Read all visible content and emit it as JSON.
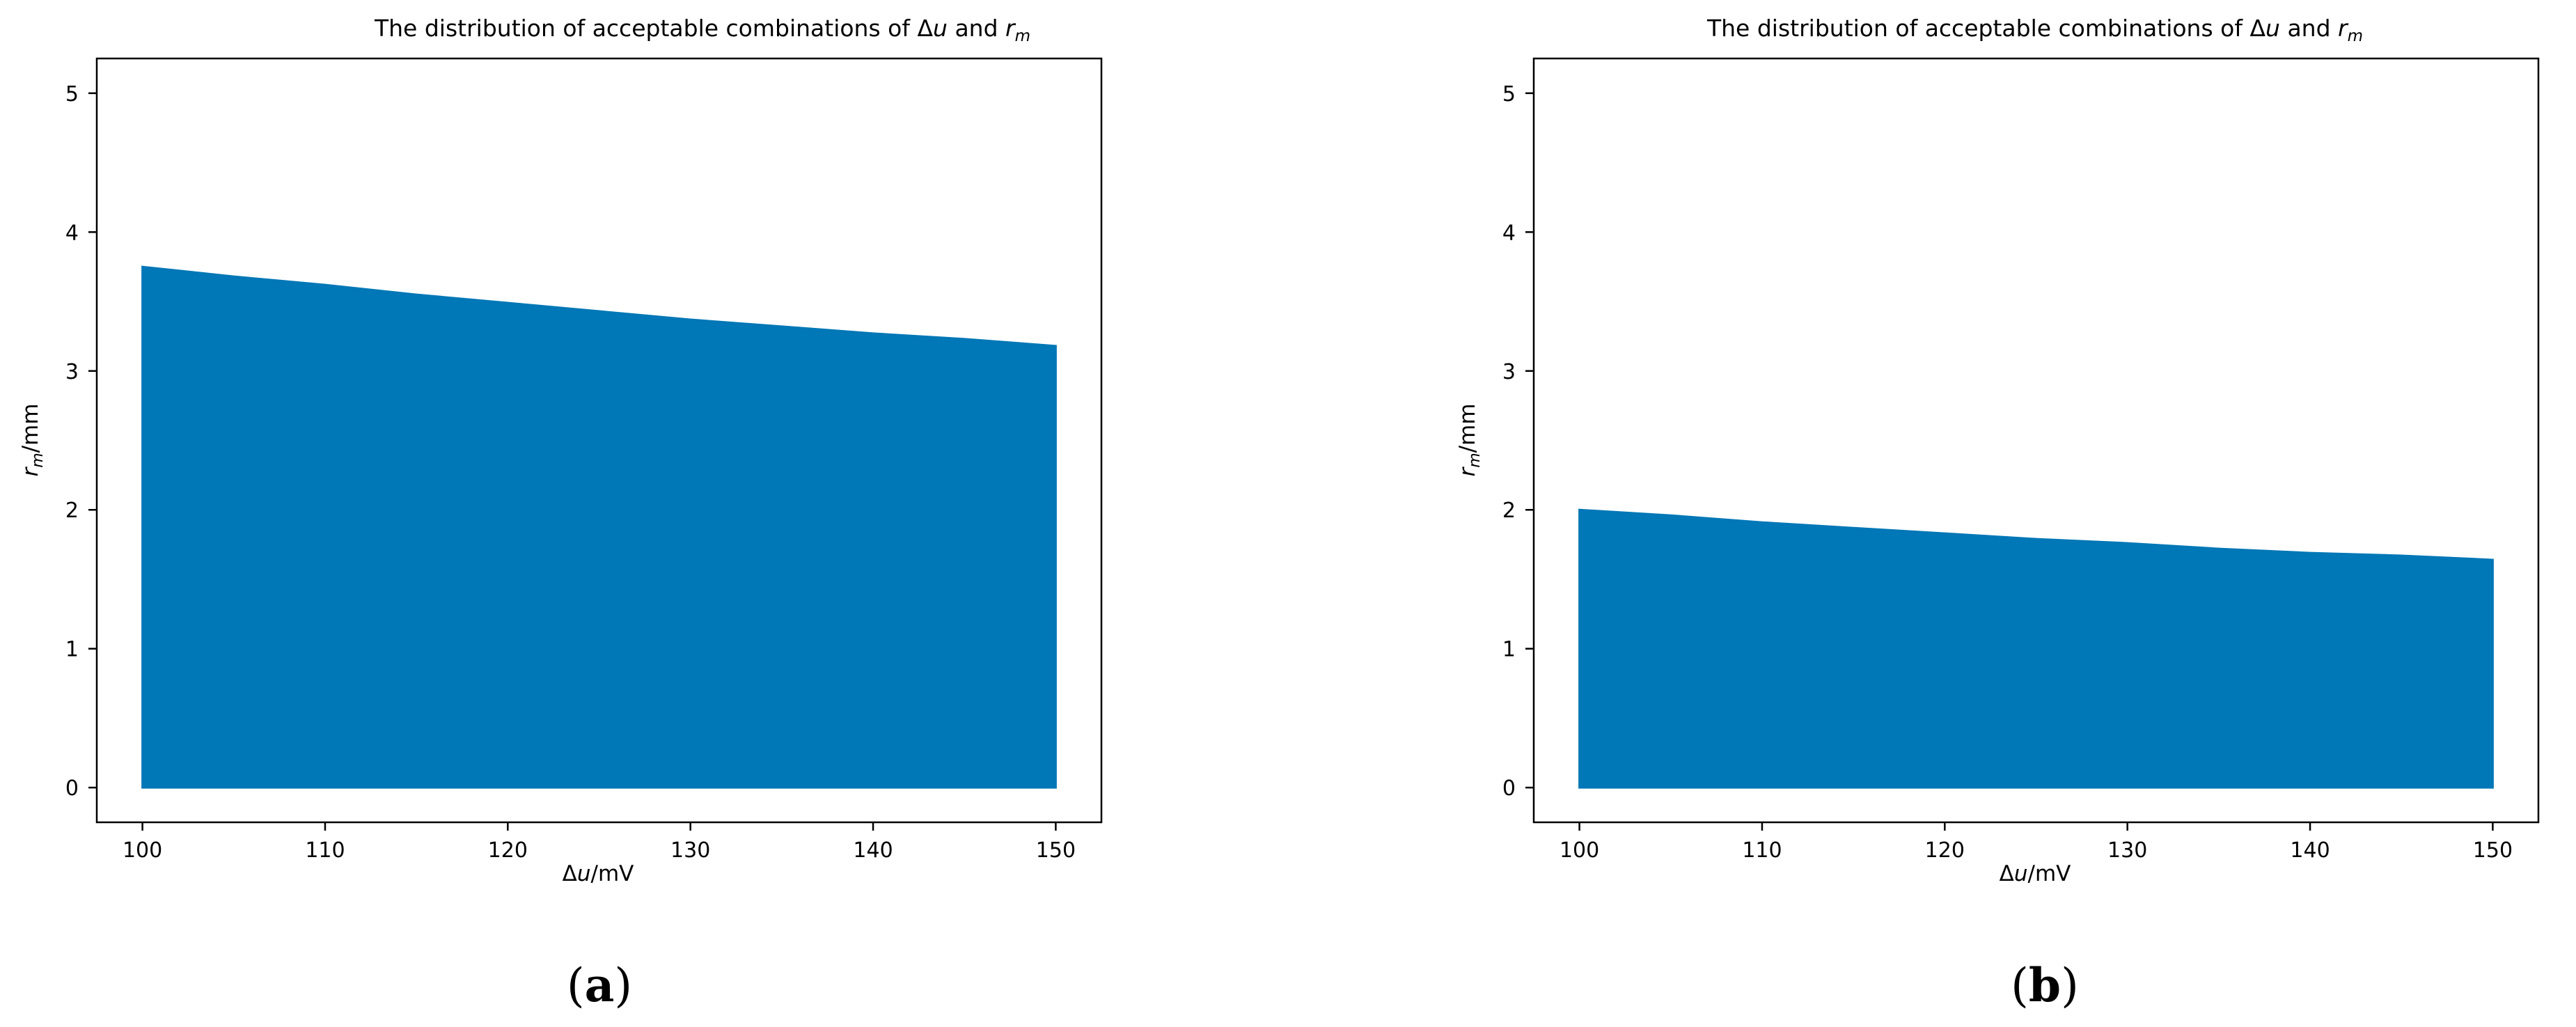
{
  "colors": {
    "fill": "#0077b6",
    "axis": "#000000",
    "background": "#ffffff"
  },
  "panels": [
    {
      "label_open": "(",
      "label_letter": "a",
      "label_close": ")",
      "title_prefix": "The distribution of acceptable combinations of Δ",
      "title_var_u": "u",
      "title_mid": " and ",
      "title_var_r": "r",
      "title_sub": "m",
      "xlabel_prefix": "Δ",
      "xlabel_var": "u",
      "xlabel_unit": "/mV",
      "ylabel_var": "r",
      "ylabel_sub": "m",
      "ylabel_unit": "/mm"
    },
    {
      "label_open": "(",
      "label_letter": "b",
      "label_close": ")",
      "title_prefix": "The distribution of acceptable combinations of Δ",
      "title_var_u": "u",
      "title_mid": " and ",
      "title_var_r": "r",
      "title_sub": "m",
      "xlabel_prefix": "Δ",
      "xlabel_var": "u",
      "xlabel_unit": "/mV",
      "ylabel_var": "r",
      "ylabel_sub": "m",
      "ylabel_unit": "/mm"
    }
  ],
  "chart_data": [
    {
      "type": "area",
      "xlim": [
        97.5,
        152.5
      ],
      "ylim": [
        -0.25,
        5.25
      ],
      "xticks": [
        100,
        110,
        120,
        130,
        140,
        150
      ],
      "yticks": [
        0,
        1,
        2,
        3,
        4,
        5
      ],
      "grid": false,
      "x": [
        100,
        105,
        110,
        115,
        120,
        125,
        130,
        135,
        140,
        145,
        150
      ],
      "y_upper": [
        3.75,
        3.68,
        3.62,
        3.55,
        3.49,
        3.43,
        3.37,
        3.32,
        3.27,
        3.23,
        3.18
      ],
      "y_lower": [
        0,
        0,
        0,
        0,
        0,
        0,
        0,
        0,
        0,
        0,
        0
      ]
    },
    {
      "type": "area",
      "xlim": [
        97.5,
        152.5
      ],
      "ylim": [
        -0.25,
        5.25
      ],
      "xticks": [
        100,
        110,
        120,
        130,
        140,
        150
      ],
      "yticks": [
        0,
        1,
        2,
        3,
        4,
        5
      ],
      "grid": false,
      "x": [
        100,
        105,
        110,
        115,
        120,
        125,
        130,
        135,
        140,
        145,
        150
      ],
      "y_upper": [
        2.0,
        1.96,
        1.91,
        1.87,
        1.83,
        1.79,
        1.76,
        1.72,
        1.69,
        1.67,
        1.64
      ],
      "y_lower": [
        0,
        0,
        0,
        0,
        0,
        0,
        0,
        0,
        0,
        0,
        0
      ]
    }
  ]
}
